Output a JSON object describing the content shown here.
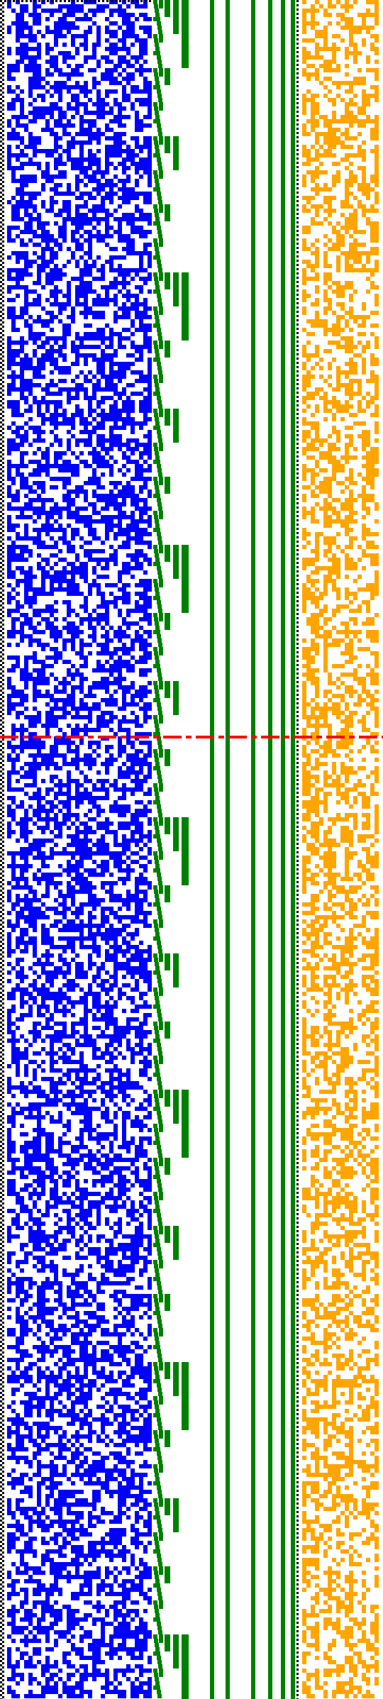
{
  "colors": {
    "background": "#ffffff",
    "blue_panel": "#0000ff",
    "green_panel": "#008000",
    "orange_panel": "#ffa500",
    "marker_line": "#ff0000",
    "dotted_border": "#000000"
  },
  "panels": [
    {
      "id": "blue-bit-grid",
      "kind": "random-bit-grid",
      "fill_density": 0.55
    },
    {
      "id": "green-counter-bars",
      "kind": "binary-counter-staircase",
      "bit_columns": 9
    },
    {
      "id": "orange-bit-columns",
      "kind": "column-biased-bit-grid",
      "fill_density": 0.4
    }
  ],
  "marker": {
    "row_fraction": 0.432,
    "style": "dashed"
  },
  "dividers": [
    {
      "id": "left-border",
      "style": "dotted"
    },
    {
      "id": "mid-divider",
      "style": "dotted"
    },
    {
      "id": "top-border",
      "style": "dotted"
    }
  ]
}
